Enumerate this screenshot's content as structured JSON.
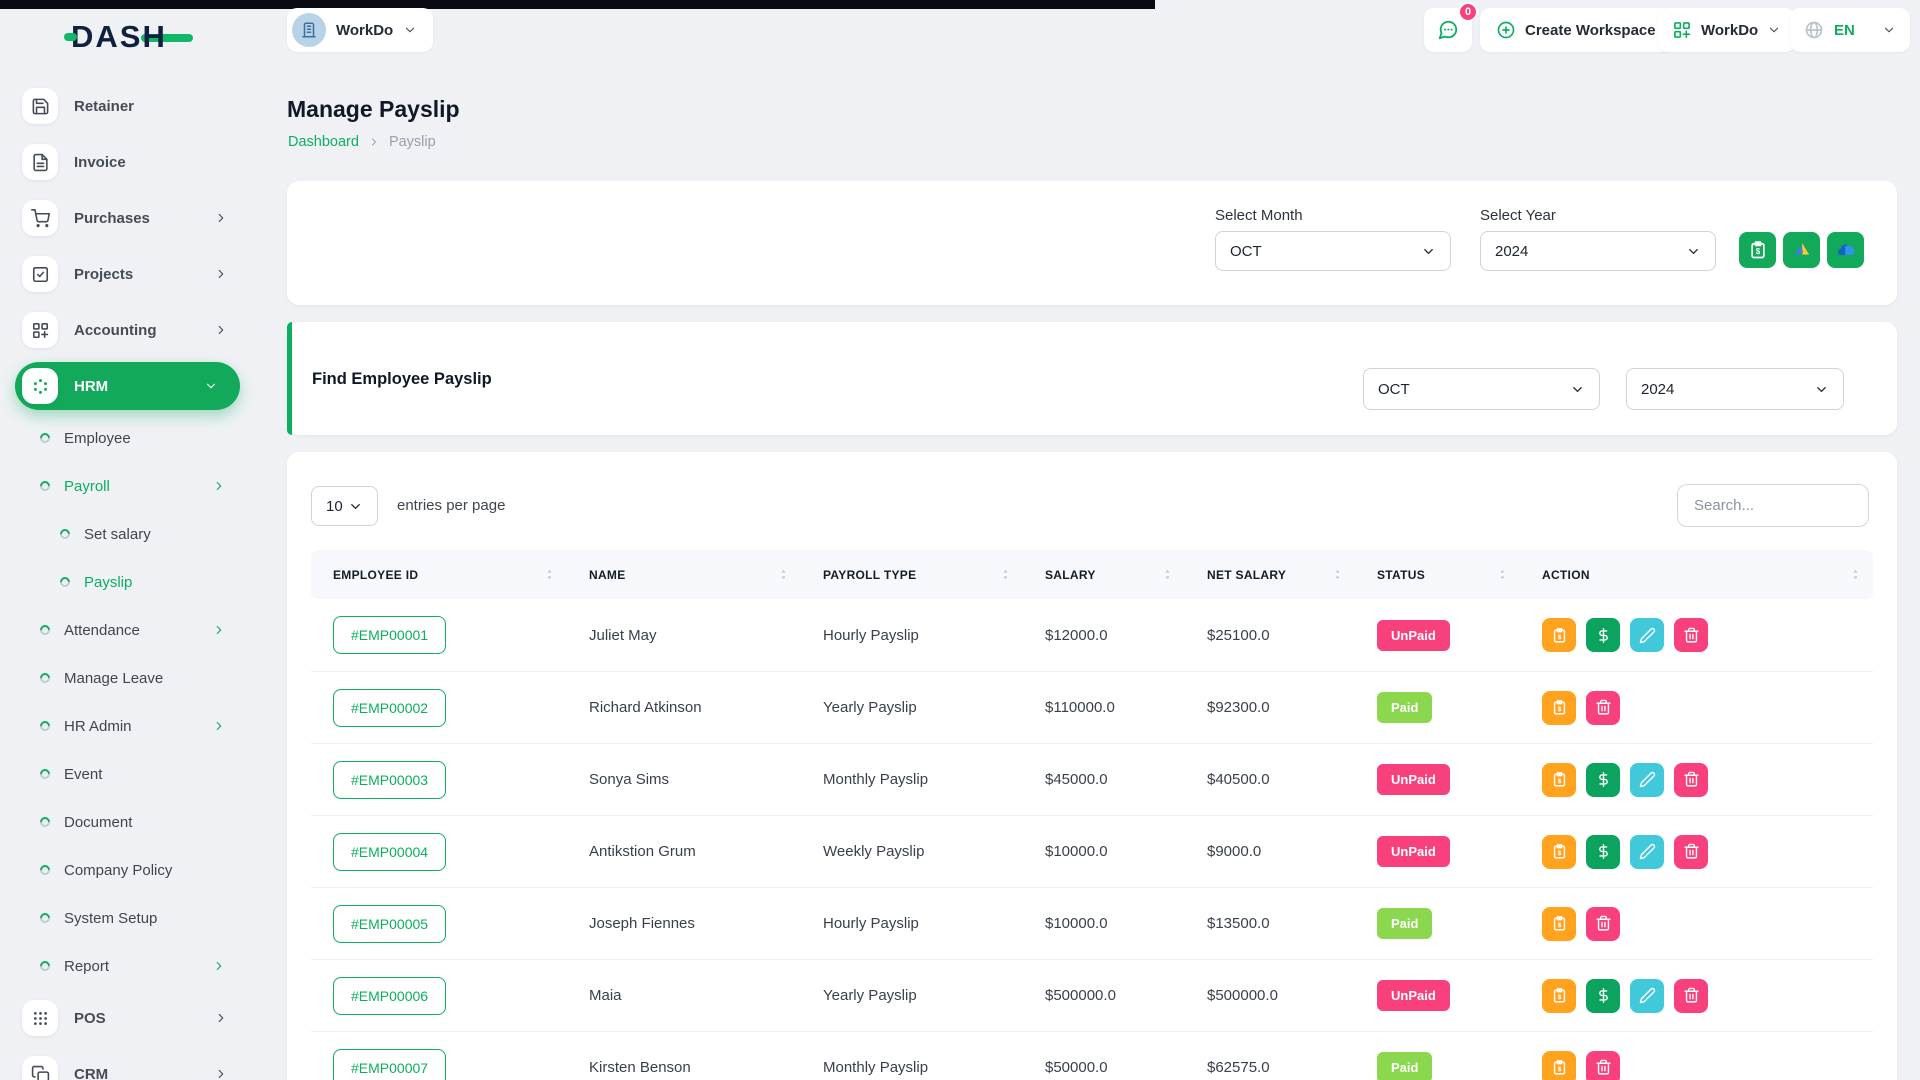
{
  "theme": {
    "primary_green": "#0CAF60",
    "badge_unpaid": "#F8407C",
    "badge_paid": "#8BD74E",
    "action_payslip_orange": "#FFA21D",
    "action_pay_green": "#0CA35F",
    "action_edit_cyan": "#41C8DA",
    "action_delete_pink": "#F8407C"
  },
  "brand": {
    "logo_text": "DASH"
  },
  "topbar": {
    "workspace_pill": {
      "label": "WorkDo"
    },
    "messages": {
      "badge": "0"
    },
    "create_workspace": {
      "label": "Create Workspace"
    },
    "app_switcher": {
      "label": "WorkDo"
    },
    "language": {
      "label": "EN"
    }
  },
  "sidebar": {
    "items": [
      {
        "label": "Retainer",
        "icon": "save-icon",
        "level": 0
      },
      {
        "label": "Invoice",
        "icon": "invoice-icon",
        "level": 0
      },
      {
        "label": "Purchases",
        "icon": "cart-icon",
        "level": 0,
        "arrow": "right"
      },
      {
        "label": "Projects",
        "icon": "check-square-icon",
        "level": 0,
        "arrow": "right"
      },
      {
        "label": "Accounting",
        "icon": "grid-plus-icon",
        "level": 0,
        "arrow": "right"
      },
      {
        "label": "HRM",
        "icon": "hrm-icon",
        "level": 0,
        "active": true,
        "arrow": "down"
      },
      {
        "label": "Employee",
        "level": 1
      },
      {
        "label": "Payroll",
        "level": 1,
        "active_link": true,
        "arrow": "right"
      },
      {
        "label": "Set salary",
        "level": 2
      },
      {
        "label": "Payslip",
        "level": 2,
        "active_link": true
      },
      {
        "label": "Attendance",
        "level": 1,
        "arrow": "right"
      },
      {
        "label": "Manage Leave",
        "level": 1
      },
      {
        "label": "HR Admin",
        "level": 1,
        "arrow": "right"
      },
      {
        "label": "Event",
        "level": 1
      },
      {
        "label": "Document",
        "level": 1
      },
      {
        "label": "Company Policy",
        "level": 1
      },
      {
        "label": "System Setup",
        "level": 1
      },
      {
        "label": "Report",
        "level": 1,
        "arrow": "right"
      },
      {
        "label": "POS",
        "icon": "pos-icon",
        "level": 0,
        "arrow": "right"
      },
      {
        "label": "CRM",
        "icon": "crm-icon",
        "level": 0,
        "arrow": "right"
      }
    ]
  },
  "page": {
    "title": "Manage Payslip",
    "breadcrumb": {
      "home": "Dashboard",
      "current": "Payslip"
    }
  },
  "filter_card": {
    "month_label": "Select Month",
    "month_value": "OCT",
    "year_label": "Select Year",
    "year_value": "2024",
    "buttons": [
      {
        "name": "bulk-payment-button",
        "icon": "clipboard-dollar-icon"
      },
      {
        "name": "google-drive-export-button",
        "icon": "google-drive-icon"
      },
      {
        "name": "onedrive-export-button",
        "icon": "onedrive-icon"
      }
    ]
  },
  "find_card": {
    "title": "Find Employee Payslip",
    "month_value": "OCT",
    "year_value": "2024"
  },
  "table": {
    "entries_value": "10",
    "entries_label": "entries per page",
    "search_placeholder": "Search...",
    "columns": [
      "EMPLOYEE ID",
      "NAME",
      "PAYROLL TYPE",
      "SALARY",
      "NET SALARY",
      "STATUS",
      "ACTION"
    ],
    "rows": [
      {
        "employee_id": "#EMP00001",
        "name": "Juliet May",
        "payroll_type": "Hourly Payslip",
        "salary": "$12000.0",
        "net_salary": "$25100.0",
        "status": "UnPaid",
        "actions": [
          "payslip",
          "pay",
          "edit",
          "delete"
        ]
      },
      {
        "employee_id": "#EMP00002",
        "name": "Richard Atkinson",
        "payroll_type": "Yearly Payslip",
        "salary": "$110000.0",
        "net_salary": "$92300.0",
        "status": "Paid",
        "actions": [
          "payslip",
          "delete"
        ]
      },
      {
        "employee_id": "#EMP00003",
        "name": "Sonya Sims",
        "payroll_type": "Monthly Payslip",
        "salary": "$45000.0",
        "net_salary": "$40500.0",
        "status": "UnPaid",
        "actions": [
          "payslip",
          "pay",
          "edit",
          "delete"
        ]
      },
      {
        "employee_id": "#EMP00004",
        "name": "Antikstion Grum",
        "payroll_type": "Weekly Payslip",
        "salary": "$10000.0",
        "net_salary": "$9000.0",
        "status": "UnPaid",
        "actions": [
          "payslip",
          "pay",
          "edit",
          "delete"
        ]
      },
      {
        "employee_id": "#EMP00005",
        "name": "Joseph Fiennes",
        "payroll_type": "Hourly Payslip",
        "salary": "$10000.0",
        "net_salary": "$13500.0",
        "status": "Paid",
        "actions": [
          "payslip",
          "delete"
        ]
      },
      {
        "employee_id": "#EMP00006",
        "name": "Maia",
        "payroll_type": "Yearly Payslip",
        "salary": "$500000.0",
        "net_salary": "$500000.0",
        "status": "UnPaid",
        "actions": [
          "payslip",
          "pay",
          "edit",
          "delete"
        ]
      },
      {
        "employee_id": "#EMP00007",
        "name": "Kirsten Benson",
        "payroll_type": "Monthly Payslip",
        "salary": "$50000.0",
        "net_salary": "$62575.0",
        "status": "Paid",
        "actions": [
          "payslip",
          "delete"
        ]
      }
    ],
    "status_colors": {
      "Paid": "#8BD74E",
      "UnPaid": "#F8407C"
    },
    "action_colors": {
      "payslip": "#FFA21D",
      "pay": "#0CA35F",
      "edit": "#41C8DA",
      "delete": "#F8407C"
    },
    "action_icons": {
      "payslip": "clipboard-dollar-icon",
      "pay": "dollar-icon",
      "edit": "pencil-icon",
      "delete": "trash-icon"
    }
  }
}
